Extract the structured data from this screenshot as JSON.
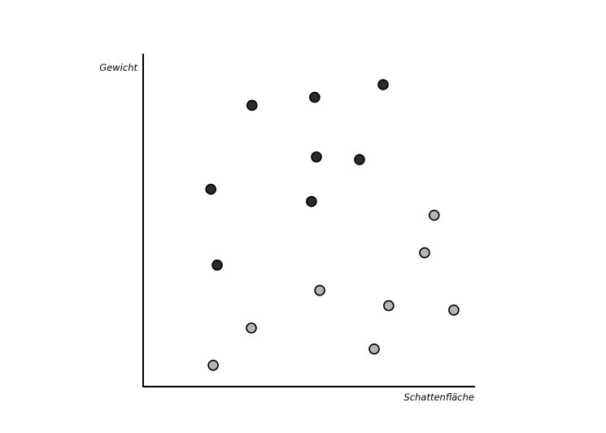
{
  "chart_data": {
    "type": "scatter",
    "title": "",
    "xlabel": "Schattenfläche",
    "ylabel": "Gewicht",
    "xlim": [
      0,
      100
    ],
    "ylim": [
      0,
      100
    ],
    "grid": false,
    "legend": "none",
    "series": [
      {
        "color": "#2b2b2b",
        "points": [
          {
            "x": 32.8,
            "y": 84.5
          },
          {
            "x": 51.7,
            "y": 86.9
          },
          {
            "x": 72.3,
            "y": 90.7
          },
          {
            "x": 52.2,
            "y": 69.0
          },
          {
            "x": 65.2,
            "y": 68.2
          },
          {
            "x": 20.4,
            "y": 59.3
          },
          {
            "x": 50.7,
            "y": 55.6
          },
          {
            "x": 22.3,
            "y": 36.5
          }
        ]
      },
      {
        "color": "#b4b4b4",
        "points": [
          {
            "x": 87.7,
            "y": 51.5
          },
          {
            "x": 84.8,
            "y": 40.2
          },
          {
            "x": 53.2,
            "y": 28.9
          },
          {
            "x": 74.0,
            "y": 24.3
          },
          {
            "x": 93.6,
            "y": 23.0
          },
          {
            "x": 32.6,
            "y": 17.6
          },
          {
            "x": 69.6,
            "y": 11.3
          },
          {
            "x": 21.1,
            "y": 6.4
          }
        ]
      }
    ]
  }
}
